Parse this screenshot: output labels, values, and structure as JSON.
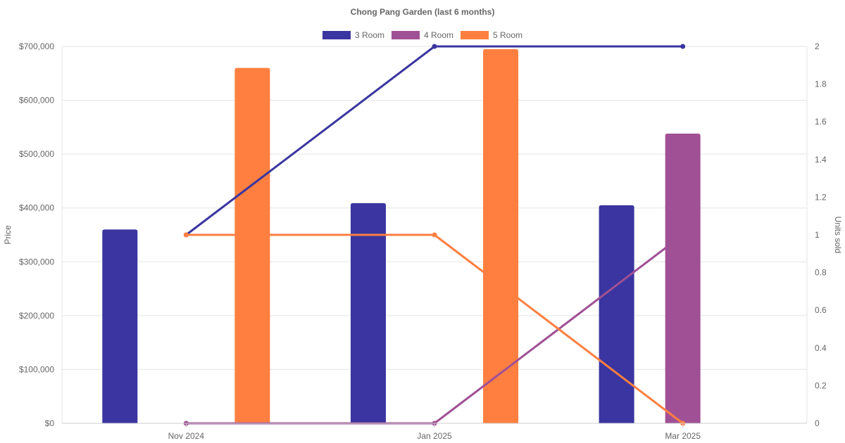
{
  "chart_data": {
    "type": "bar",
    "title": "Chong Pang Garden (last 6 months)",
    "categories": [
      "Nov 2024",
      "Jan 2025",
      "Mar 2025"
    ],
    "y_left": {
      "label": "Price",
      "min": 0,
      "max": 700000,
      "step": 100000,
      "tick_labels": [
        "$0",
        "$100,000",
        "$200,000",
        "$300,000",
        "$400,000",
        "$500,000",
        "$600,000",
        "$700,000"
      ]
    },
    "y_right": {
      "label": "Units sold",
      "min": 0,
      "max": 2,
      "step": 0.2,
      "tick_labels": [
        "0",
        "0.2",
        "0.4",
        "0.6",
        "0.8",
        "1",
        "1.2",
        "1.4",
        "1.6",
        "1.8",
        "2"
      ]
    },
    "series": [
      {
        "name": "3 Room",
        "color": "#3a35a0",
        "prices": [
          360000,
          409000,
          405000
        ],
        "units": [
          1,
          2,
          2
        ]
      },
      {
        "name": "4 Room",
        "color": "#a05095",
        "prices": [
          null,
          null,
          538000
        ],
        "units": [
          0,
          0,
          1
        ]
      },
      {
        "name": "5 Room",
        "color": "#ff7f40",
        "prices": [
          660000,
          695000,
          null
        ],
        "units": [
          1,
          1,
          0
        ]
      }
    ],
    "legend_position": "top",
    "grid": true
  }
}
